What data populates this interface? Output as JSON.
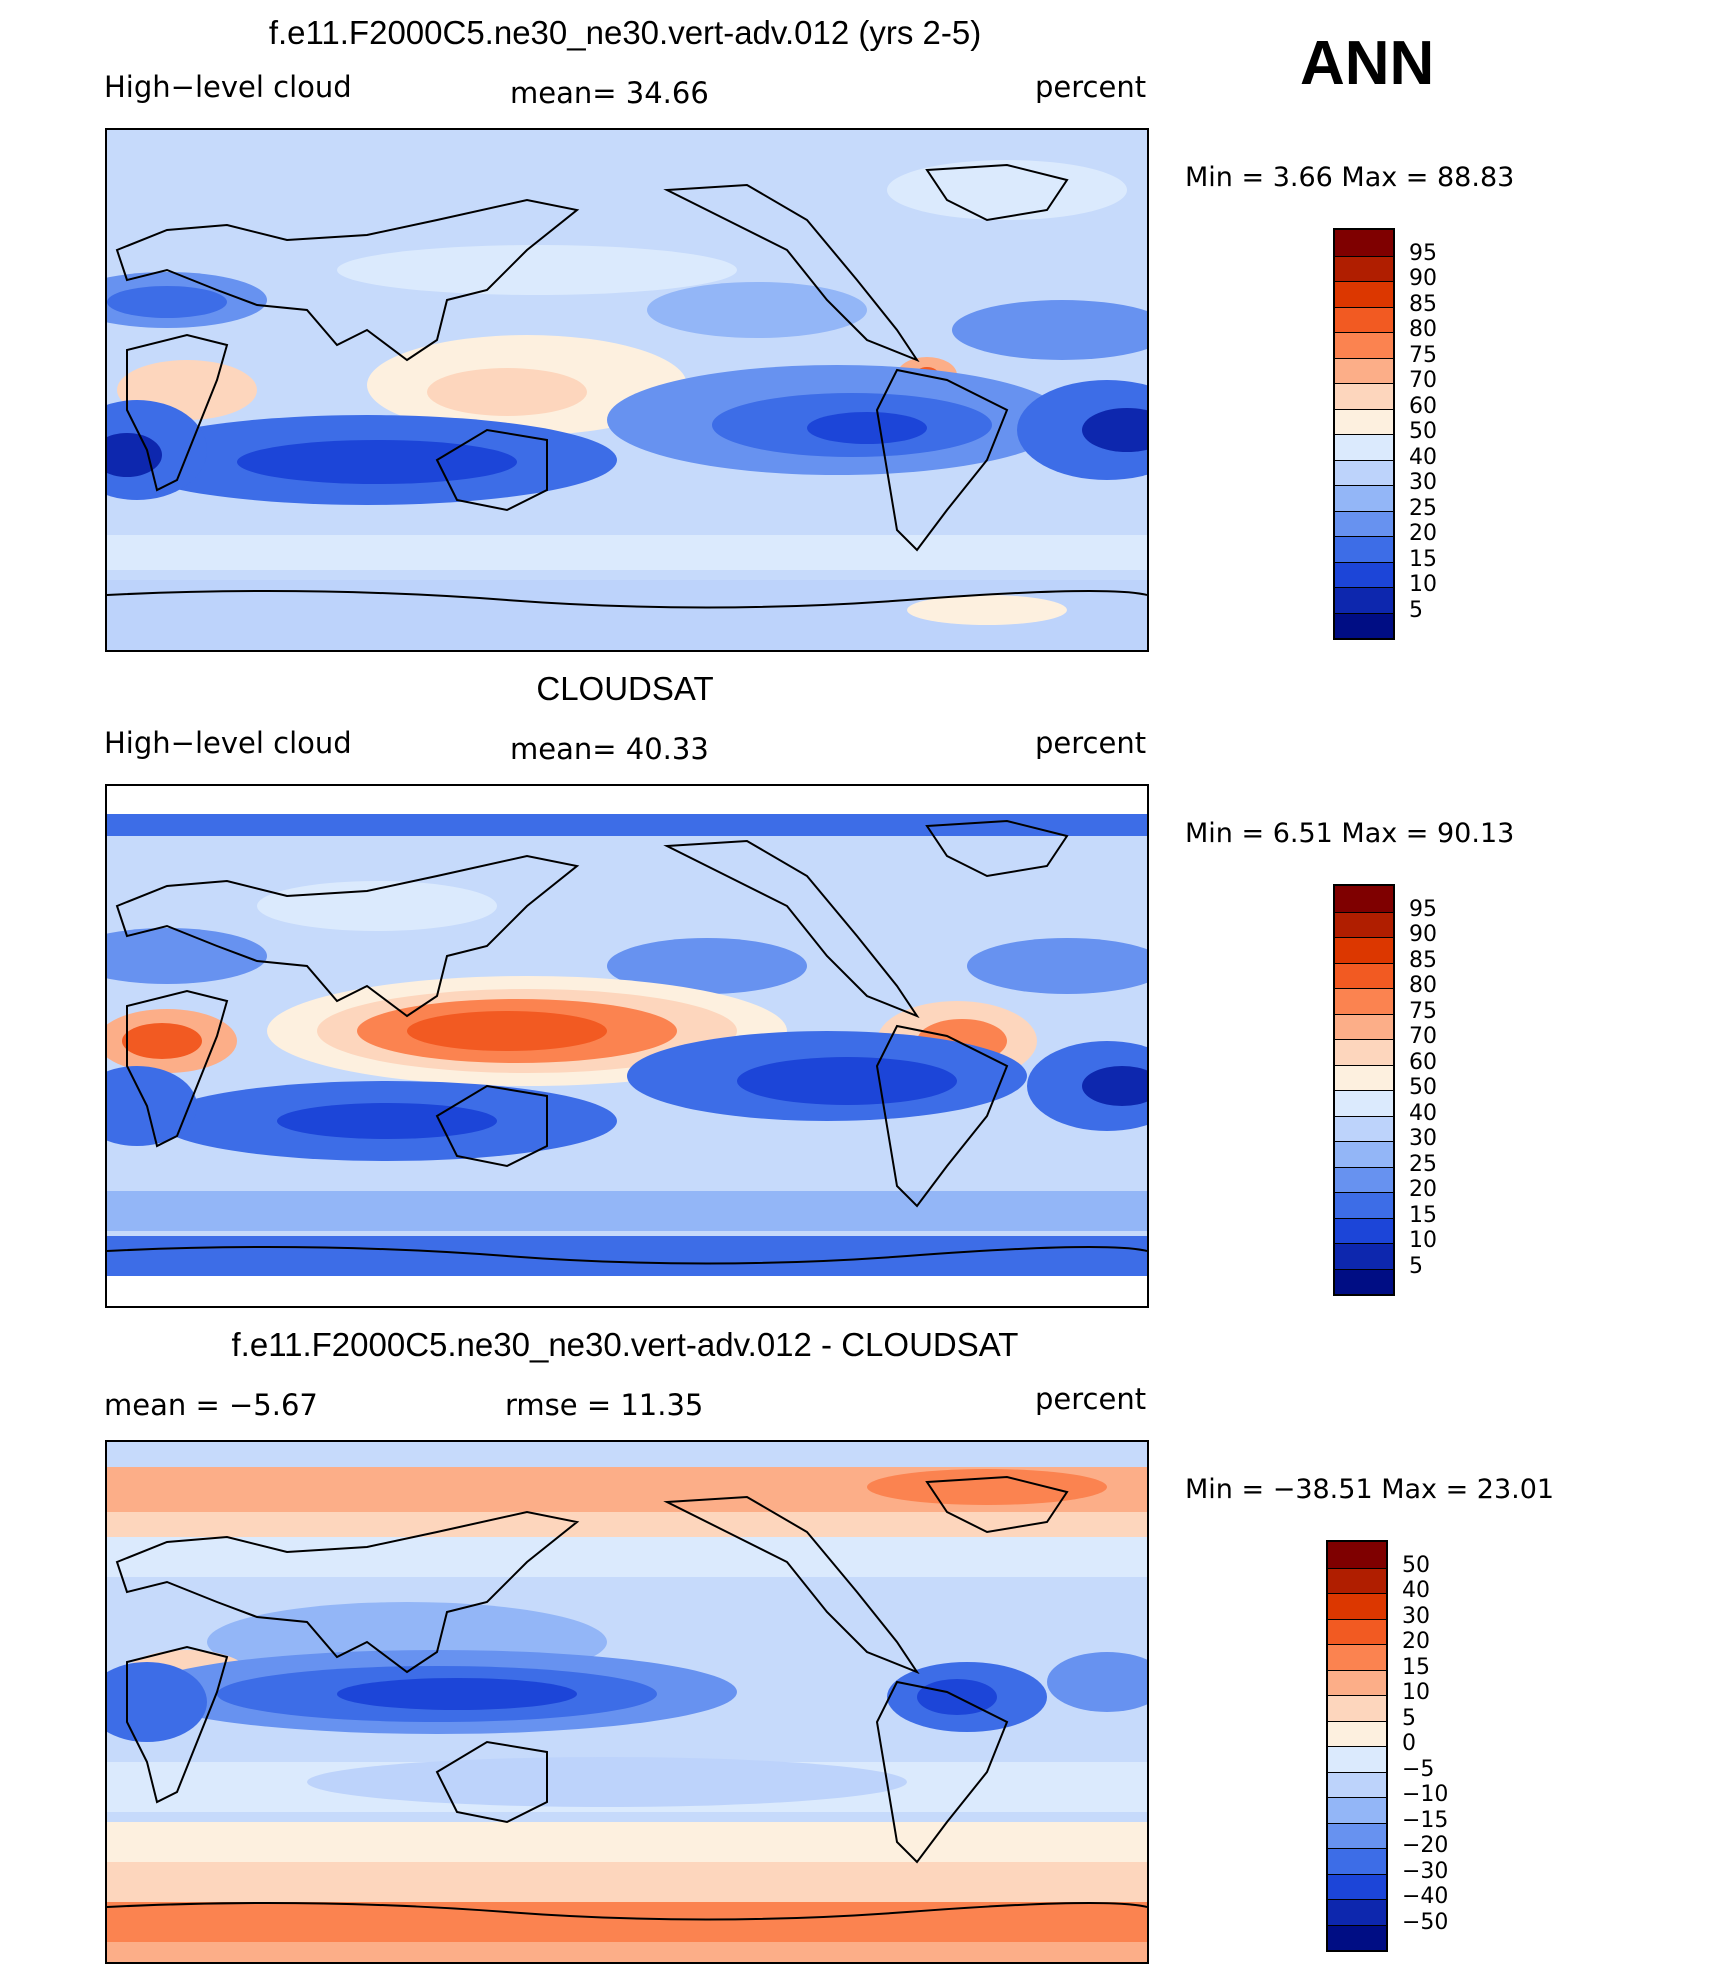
{
  "season": "ANN",
  "panels": [
    {
      "id": "model",
      "title": "f.e11.F2000C5.ne30_ne30.vert-adv.012 (yrs 2-5)",
      "variable": "High−level cloud",
      "stat": "mean=   34.66",
      "units": "percent",
      "minmax": "Min =     3.66  Max =    88.83",
      "colorbar": {
        "labels": [
          "95",
          "90",
          "85",
          "80",
          "75",
          "70",
          "60",
          "50",
          "40",
          "30",
          "25",
          "20",
          "15",
          "10",
          "5"
        ],
        "colors": [
          "#7f0000",
          "#b01e00",
          "#dc3700",
          "#f25a22",
          "#fb8350",
          "#fcae88",
          "#fdd6bd",
          "#fdf0df",
          "#dbeafd",
          "#bdd3fb",
          "#93b6f7",
          "#6792f0",
          "#3d6de7",
          "#1c45d8",
          "#0d27ae",
          "#000d84"
        ]
      }
    },
    {
      "id": "obs",
      "title": "CLOUDSAT",
      "variable": "High−level cloud",
      "stat": "mean=   40.33",
      "units": "percent",
      "minmax": "Min =     6.51  Max =    90.13",
      "colorbar": {
        "labels": [
          "95",
          "90",
          "85",
          "80",
          "75",
          "70",
          "60",
          "50",
          "40",
          "30",
          "25",
          "20",
          "15",
          "10",
          "5"
        ],
        "colors": [
          "#7f0000",
          "#b01e00",
          "#dc3700",
          "#f25a22",
          "#fb8350",
          "#fcae88",
          "#fdd6bd",
          "#fdf0df",
          "#dbeafd",
          "#bdd3fb",
          "#93b6f7",
          "#6792f0",
          "#3d6de7",
          "#1c45d8",
          "#0d27ae",
          "#000d84"
        ]
      }
    },
    {
      "id": "diff",
      "title": "f.e11.F2000C5.ne30_ne30.vert-adv.012 - CLOUDSAT",
      "stat_left": "mean =    −5.67",
      "stat": "rmse =    11.35",
      "units": "percent",
      "minmax": "Min = −38.51  Max =    23.01",
      "colorbar": {
        "labels": [
          "50",
          "40",
          "30",
          "20",
          "15",
          "10",
          "5",
          "0",
          "−5",
          "−10",
          "−15",
          "−20",
          "−30",
          "−40",
          "−50"
        ],
        "colors": [
          "#7f0000",
          "#b01e00",
          "#dc3700",
          "#f25a22",
          "#fb8350",
          "#fcae88",
          "#fdd6bd",
          "#fdf0df",
          "#dbeafd",
          "#bdd3fb",
          "#93b6f7",
          "#6792f0",
          "#3d6de7",
          "#1c45d8",
          "#0d27ae",
          "#000d84"
        ]
      }
    }
  ]
}
